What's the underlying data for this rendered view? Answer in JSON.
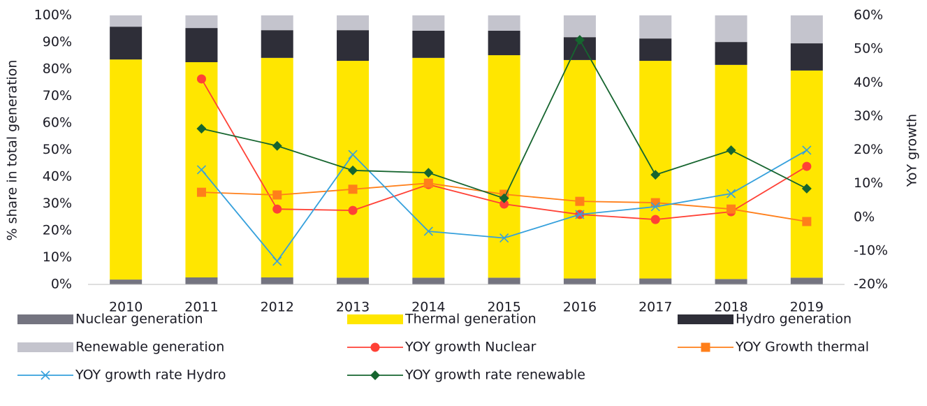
{
  "chart_data": {
    "type": "bar-line",
    "ylabel": "% share in total generation",
    "y2label": "YoY growth",
    "categories": [
      "2010",
      "2011",
      "2012",
      "2013",
      "2014",
      "2015",
      "2016",
      "2017",
      "2018",
      "2019"
    ],
    "ylim": [
      0,
      100
    ],
    "yticks": [
      {
        "value": 0,
        "label": "0%"
      },
      {
        "value": 10,
        "label": "10%"
      },
      {
        "value": 20,
        "label": "20%"
      },
      {
        "value": 30,
        "label": "30%"
      },
      {
        "value": 40,
        "label": "40%"
      },
      {
        "value": 50,
        "label": "50%"
      },
      {
        "value": 60,
        "label": "60%"
      },
      {
        "value": 70,
        "label": "70%"
      },
      {
        "value": 80,
        "label": "80%"
      },
      {
        "value": 90,
        "label": "90%"
      },
      {
        "value": 100,
        "label": "100%"
      }
    ],
    "y2lim": [
      -20,
      60
    ],
    "y2ticks": [
      {
        "value": -20,
        "label": "-20%"
      },
      {
        "value": -10,
        "label": "-10%"
      },
      {
        "value": 0,
        "label": "0%"
      },
      {
        "value": 10,
        "label": "10%"
      },
      {
        "value": 20,
        "label": "20%"
      },
      {
        "value": 30,
        "label": "30%"
      },
      {
        "value": 40,
        "label": "40%"
      },
      {
        "value": 50,
        "label": "50%"
      },
      {
        "value": 60,
        "label": "60%"
      }
    ],
    "stacked": true,
    "legend": "bottom",
    "series": [
      {
        "name": "Nuclear generation",
        "kind": "bar",
        "color": "#747480",
        "values": [
          1.8,
          2.6,
          2.6,
          2.5,
          2.5,
          2.5,
          2.2,
          2.2,
          2.0,
          2.5
        ]
      },
      {
        "name": "Thermal generation",
        "kind": "bar",
        "color": "#ffe600",
        "values": [
          81.8,
          80.0,
          81.6,
          80.6,
          81.7,
          82.7,
          81.2,
          80.9,
          79.6,
          77.0
        ]
      },
      {
        "name": "Hydro generation",
        "kind": "bar",
        "color": "#2e2e38",
        "values": [
          12.2,
          12.7,
          10.3,
          11.4,
          10.1,
          9.1,
          8.5,
          8.3,
          8.5,
          10.1
        ]
      },
      {
        "name": "Renewable generation",
        "kind": "bar",
        "color": "#c4c4cd",
        "values": [
          4.2,
          4.7,
          5.5,
          5.5,
          5.7,
          5.7,
          8.1,
          8.6,
          9.9,
          10.4
        ]
      },
      {
        "name": "YOY growth Nuclear",
        "kind": "line",
        "axis": "y2",
        "marker": "circle",
        "color": "#ff4136",
        "values": [
          null,
          41.1,
          2.4,
          2.0,
          9.7,
          3.9,
          0.8,
          -0.7,
          1.6,
          15.1
        ]
      },
      {
        "name": "YOY Growth thermal",
        "kind": "line",
        "axis": "y2",
        "marker": "square",
        "color": "#ff7f1a",
        "values": [
          null,
          7.4,
          6.6,
          8.3,
          10.1,
          6.8,
          4.7,
          4.3,
          2.4,
          -1.3
        ]
      },
      {
        "name": "YOY growth rate Hydro",
        "kind": "line",
        "axis": "y2",
        "marker": "x",
        "color": "#35a0dc",
        "values": [
          null,
          14.1,
          -13.1,
          18.6,
          -4.2,
          -6.2,
          0.8,
          3.1,
          7.0,
          19.9
        ]
      },
      {
        "name": "YOY growth rate renewable",
        "kind": "line",
        "axis": "y2",
        "marker": "diamond",
        "color": "#16652f",
        "values": [
          null,
          26.3,
          21.2,
          13.9,
          13.2,
          5.6,
          52.7,
          12.6,
          19.9,
          8.5
        ]
      }
    ]
  }
}
